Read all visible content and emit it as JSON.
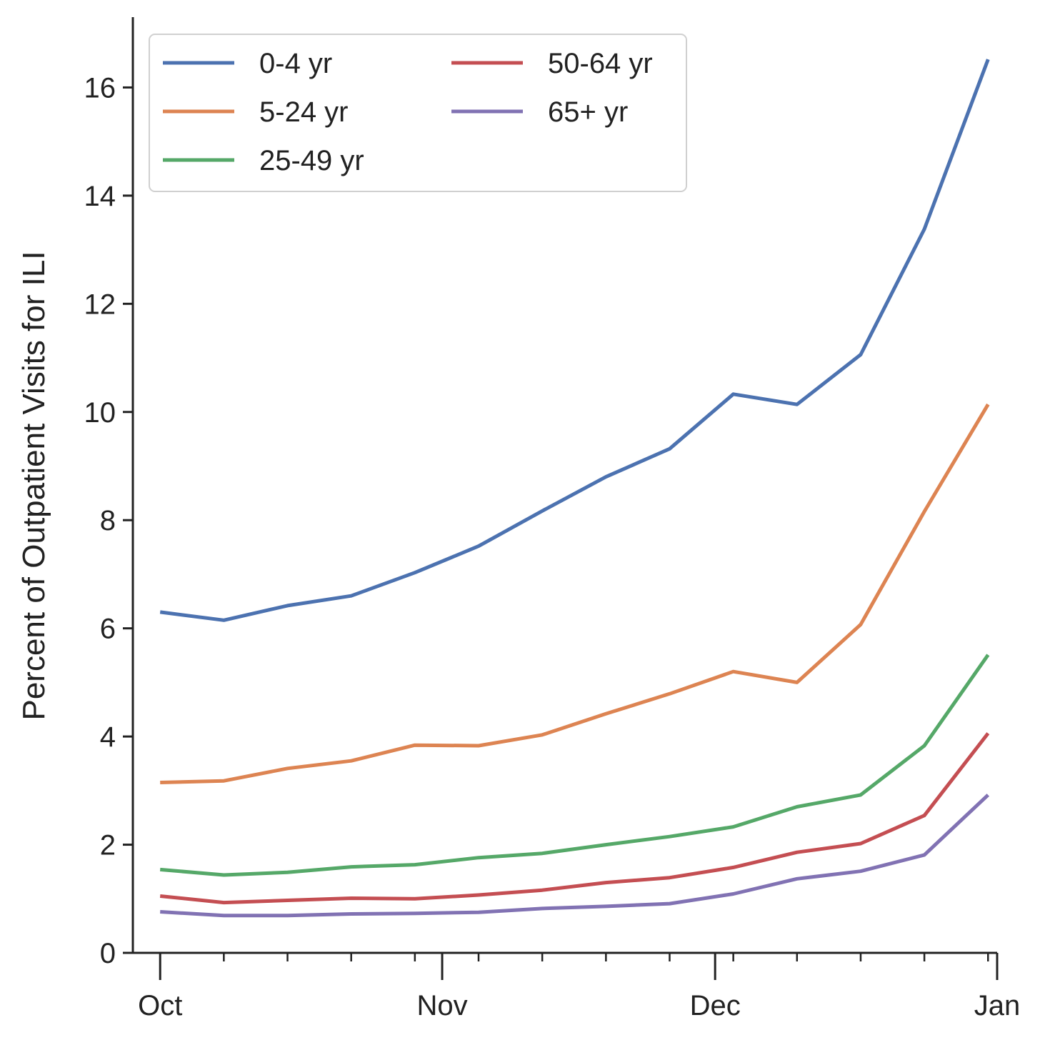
{
  "chart_data": {
    "type": "line",
    "title": "",
    "xlabel": "",
    "ylabel": "Percent of Outpatient Visits for ILI",
    "ylim": [
      0,
      17.3
    ],
    "yticks": [
      0,
      2,
      4,
      6,
      8,
      10,
      12,
      14,
      16
    ],
    "ytick_labels": [
      "0",
      "2",
      "4",
      "6",
      "8",
      "10",
      "12",
      "14",
      "16"
    ],
    "xlim": [
      "2022-09-28",
      "2023-01-01"
    ],
    "x_major_ticks": [
      "2022-10-01",
      "2022-11-01",
      "2022-12-01",
      "2023-01-01"
    ],
    "x_major_labels": [
      "Oct",
      "Nov",
      "Dec",
      "Jan"
    ],
    "x_minor_ticks": [
      "2022-10-08",
      "2022-10-15",
      "2022-10-22",
      "2022-10-29",
      "2022-11-05",
      "2022-11-12",
      "2022-11-19",
      "2022-11-26",
      "2022-12-03",
      "2022-12-10",
      "2022-12-17",
      "2022-12-24",
      "2022-12-31"
    ],
    "x": [
      "2022-10-01",
      "2022-10-08",
      "2022-10-15",
      "2022-10-22",
      "2022-10-29",
      "2022-11-05",
      "2022-11-12",
      "2022-11-19",
      "2022-11-26",
      "2022-12-03",
      "2022-12-10",
      "2022-12-17",
      "2022-12-24",
      "2022-12-31"
    ],
    "series": [
      {
        "name": "0-4 yr",
        "color": "#4c72b0",
        "values": [
          6.3,
          6.15,
          6.42,
          6.6,
          7.03,
          7.52,
          8.17,
          8.8,
          9.32,
          10.33,
          10.14,
          11.06,
          13.38,
          16.52
        ]
      },
      {
        "name": "5-24 yr",
        "color": "#dd8452",
        "values": [
          3.15,
          3.18,
          3.41,
          3.55,
          3.84,
          3.83,
          4.03,
          4.42,
          4.79,
          5.2,
          5.0,
          6.07,
          8.16,
          10.14
        ]
      },
      {
        "name": "25-49 yr",
        "color": "#55a868",
        "values": [
          1.54,
          1.44,
          1.49,
          1.59,
          1.63,
          1.76,
          1.84,
          2.0,
          2.15,
          2.33,
          2.7,
          2.92,
          3.83,
          5.51
        ]
      },
      {
        "name": "50-64 yr",
        "color": "#c44e52",
        "values": [
          1.05,
          0.93,
          0.97,
          1.01,
          1.0,
          1.07,
          1.16,
          1.3,
          1.39,
          1.58,
          1.86,
          2.02,
          2.54,
          4.06
        ]
      },
      {
        "name": "65+ yr",
        "color": "#8172b3",
        "values": [
          0.76,
          0.69,
          0.69,
          0.72,
          0.73,
          0.75,
          0.82,
          0.86,
          0.91,
          1.09,
          1.37,
          1.51,
          1.81,
          2.92
        ]
      }
    ],
    "legend": {
      "position": "upper-left",
      "columns": 2
    },
    "grid": false
  }
}
